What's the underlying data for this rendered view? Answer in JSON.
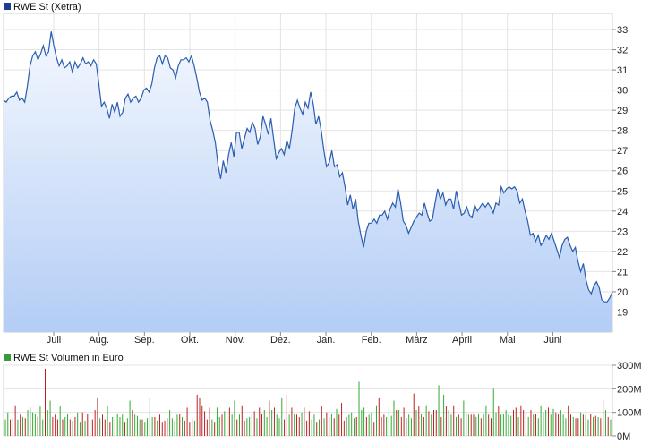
{
  "chart_data": [
    {
      "type": "area",
      "title": "RWE St (Xetra)",
      "legend_color": "#1f3a93",
      "line_color": "#2a5db0",
      "fill_top": "#f4f8fe",
      "fill_bottom": "#b3cdf5",
      "ylim": [
        18.0,
        33.8
      ],
      "y_ticks": [
        19,
        20,
        21,
        22,
        23,
        24,
        25,
        26,
        27,
        28,
        29,
        30,
        31,
        32,
        33
      ],
      "x_labels": [
        "Juli",
        "Aug.",
        "Sep.",
        "Okt.",
        "Nov.",
        "Dez.",
        "Jan.",
        "Feb.",
        "März",
        "April",
        "Mai",
        "Juni"
      ],
      "grid": true,
      "values": [
        29.5,
        29.4,
        29.6,
        29.7,
        29.7,
        29.9,
        29.5,
        29.6,
        29.4,
        30.2,
        31.2,
        31.7,
        31.9,
        31.5,
        31.8,
        32.2,
        31.7,
        31.9,
        32.9,
        32.2,
        31.6,
        31.2,
        31.5,
        31.1,
        31.2,
        31.4,
        30.9,
        31.4,
        31.1,
        31.3,
        31.6,
        31.3,
        31.4,
        31.2,
        31.5,
        31.3,
        30.3,
        29.2,
        29.4,
        29.1,
        28.6,
        29.3,
        28.9,
        29.4,
        28.7,
        28.9,
        29.6,
        29.8,
        29.4,
        29.6,
        29.7,
        29.4,
        29.6,
        30.0,
        30.1,
        29.9,
        30.3,
        31.1,
        31.6,
        31.7,
        31.3,
        31.7,
        31.6,
        31.1,
        31.0,
        30.6,
        31.2,
        31.5,
        31.5,
        31.6,
        31.4,
        31.7,
        31.2,
        30.6,
        29.9,
        29.5,
        29.6,
        29.4,
        28.5,
        28.0,
        27.4,
        26.3,
        25.6,
        26.5,
        25.9,
        26.8,
        27.4,
        26.7,
        27.9,
        27.9,
        27.1,
        27.6,
        28.1,
        27.9,
        28.4,
        28.1,
        27.3,
        27.7,
        28.7,
        28.3,
        27.8,
        28.6,
        27.6,
        26.6,
        26.9,
        27.1,
        26.8,
        27.5,
        27.1,
        28.0,
        29.1,
        29.5,
        29.1,
        28.8,
        29.4,
        29.1,
        29.9,
        29.3,
        28.3,
        28.7,
        28.0,
        27.0,
        26.2,
        26.4,
        27.0,
        26.2,
        26.3,
        25.7,
        25.9,
        25.2,
        24.3,
        24.8,
        24.1,
        24.6,
        23.5,
        22.8,
        22.2,
        23.0,
        23.4,
        23.4,
        23.6,
        23.4,
        23.8,
        23.8,
        24.0,
        23.6,
        24.1,
        24.4,
        24.2,
        25.1,
        24.4,
        23.5,
        23.3,
        22.9,
        23.2,
        23.5,
        23.7,
        23.9,
        23.8,
        24.4,
        23.9,
        23.5,
        23.6,
        24.4,
        25.1,
        24.6,
        24.9,
        24.3,
        24.6,
        24.6,
        24.1,
        25.0,
        24.4,
        23.8,
        23.9,
        24.2,
        23.8,
        23.7,
        24.3,
        24.0,
        24.2,
        24.4,
        24.2,
        24.4,
        24.2,
        23.9,
        24.4,
        24.3,
        25.2,
        24.9,
        25.1,
        25.2,
        25.1,
        25.2,
        25.0,
        24.4,
        24.6,
        24.0,
        23.5,
        22.8,
        22.9,
        22.5,
        22.8,
        22.3,
        22.5,
        22.8,
        22.6,
        22.9,
        22.5,
        22.1,
        21.7,
        22.3,
        22.6,
        22.7,
        22.3,
        22.0,
        22.2,
        21.5,
        21.0,
        21.4,
        20.6,
        20.1,
        19.9,
        20.3,
        20.5,
        20.2,
        19.6,
        19.5,
        19.5,
        19.7,
        20.0
      ]
    },
    {
      "type": "bar",
      "title": "RWE St Volumen in Euro",
      "legend_color": "#3a9a3a",
      "up_color": "#33aa33",
      "down_color": "#bb2222",
      "ylim": [
        0,
        300
      ],
      "y_ticks": [
        0,
        100,
        200,
        300
      ],
      "y_tick_labels": [
        "0M",
        "100M",
        "200M",
        "300M"
      ],
      "values": [
        70,
        100,
        70,
        75,
        130,
        70,
        90,
        80,
        75,
        110,
        120,
        100,
        95,
        80,
        125,
        70,
        285,
        110,
        150,
        80,
        90,
        70,
        125,
        70,
        80,
        95,
        70,
        65,
        80,
        100,
        60,
        100,
        65,
        95,
        70,
        70,
        110,
        160,
        75,
        90,
        70,
        125,
        60,
        80,
        80,
        95,
        80,
        90,
        60,
        75,
        150,
        110,
        90,
        85,
        70,
        70,
        60,
        75,
        160,
        80,
        80,
        65,
        90,
        60,
        65,
        75,
        110,
        75,
        65,
        90,
        95,
        80,
        65,
        120,
        60,
        75,
        65,
        175,
        160,
        130,
        105,
        70,
        120,
        70,
        60,
        120,
        80,
        90,
        105,
        80,
        120,
        90,
        150,
        70,
        90,
        130,
        65,
        75,
        80,
        90,
        105,
        75,
        120,
        95,
        110,
        80,
        150,
        110,
        120,
        90,
        75,
        160,
        70,
        175,
        90,
        120,
        95,
        90,
        80,
        100,
        120,
        65,
        105,
        70,
        90,
        60,
        70,
        125,
        75,
        100,
        80,
        95,
        75,
        115,
        90,
        140,
        65,
        80,
        90,
        100,
        75,
        80,
        230,
        110,
        120,
        80,
        90,
        100,
        60,
        130,
        160,
        80,
        90,
        80,
        125,
        85,
        150,
        110,
        110,
        80,
        120,
        75,
        90,
        75,
        180,
        110,
        125,
        95,
        80,
        130,
        105,
        90,
        110,
        110,
        215,
        80,
        175,
        125,
        110,
        90,
        130,
        80,
        90,
        75,
        150,
        100,
        90,
        90,
        90,
        80,
        95,
        75,
        95,
        130,
        90,
        75,
        200,
        100,
        125,
        90,
        95,
        110,
        90,
        85,
        110,
        120,
        80,
        130,
        110,
        100,
        80,
        110,
        90,
        95,
        75,
        130,
        100,
        110,
        120,
        90,
        115,
        100,
        95,
        110,
        90,
        75,
        130,
        90,
        80,
        75,
        75,
        100,
        90,
        90,
        70,
        95,
        80,
        85,
        80,
        75,
        150,
        110,
        80,
        70
      ],
      "up": [
        1,
        1,
        0,
        1,
        0,
        1,
        0,
        1,
        0,
        1,
        1,
        1,
        1,
        0,
        1,
        1,
        0,
        1,
        1,
        0,
        0,
        0,
        1,
        0,
        1,
        1,
        0,
        1,
        0,
        1,
        1,
        0,
        1,
        0,
        1,
        0,
        0,
        0,
        1,
        0,
        0,
        1,
        0,
        1,
        0,
        1,
        1,
        1,
        0,
        1,
        1,
        0,
        1,
        1,
        1,
        0,
        1,
        1,
        1,
        1,
        0,
        1,
        0,
        0,
        0,
        0,
        1,
        1,
        1,
        1,
        0,
        1,
        0,
        0,
        0,
        0,
        1,
        0,
        0,
        0,
        0,
        0,
        0,
        1,
        0,
        1,
        1,
        0,
        1,
        1,
        0,
        1,
        1,
        0,
        1,
        0,
        0,
        1,
        1,
        0,
        0,
        1,
        0,
        0,
        1,
        1,
        0,
        1,
        0,
        1,
        1,
        1,
        0,
        0,
        1,
        0,
        1,
        0,
        0,
        1,
        0,
        0,
        0,
        1,
        1,
        0,
        1,
        0,
        1,
        0,
        0,
        1,
        0,
        1,
        0,
        0,
        0,
        1,
        1,
        1,
        1,
        0,
        1,
        1,
        1,
        0,
        1,
        1,
        0,
        1,
        0,
        0,
        0,
        1,
        1,
        1,
        1,
        0,
        1,
        0,
        0,
        1,
        1,
        1,
        0,
        1,
        0,
        1,
        0,
        1,
        0,
        1,
        0,
        0,
        1,
        0,
        1,
        0,
        1,
        1,
        0,
        1,
        0,
        0,
        1,
        0,
        1,
        0,
        0,
        1,
        1,
        0,
        1,
        1,
        0,
        0,
        1,
        1,
        0,
        1,
        1,
        1,
        1,
        1,
        0,
        0,
        1,
        0,
        0,
        0,
        1,
        0,
        1,
        0,
        1,
        1,
        1,
        1,
        0,
        1,
        1,
        0,
        0,
        1,
        1,
        1,
        0,
        0,
        1,
        0,
        0,
        1,
        0,
        1,
        1,
        0,
        1,
        0,
        1,
        0,
        0,
        1,
        0,
        1,
        1,
        0,
        0,
        0,
        1,
        0,
        1,
        1
      ]
    }
  ]
}
